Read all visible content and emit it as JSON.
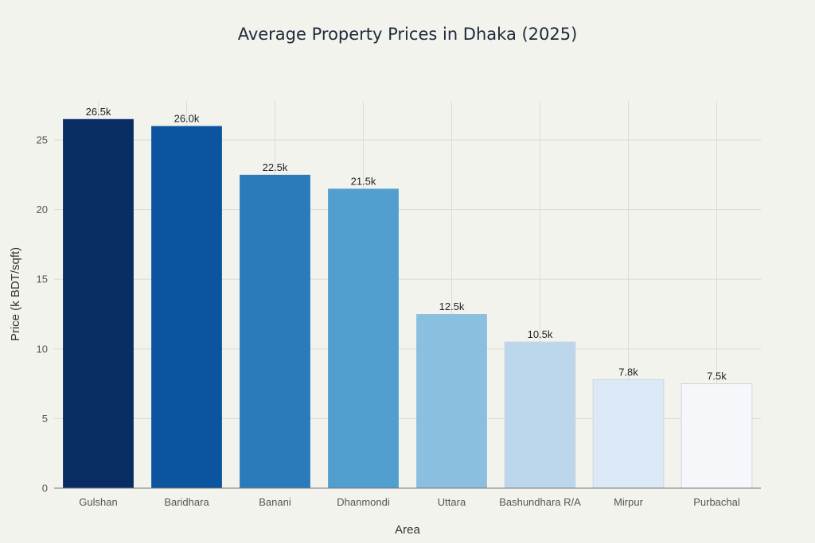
{
  "chart_data": {
    "type": "bar",
    "title": "Average Property Prices in Dhaka (2025)",
    "xlabel": "Area",
    "ylabel": "Price (k BDT/sqft)",
    "categories": [
      "Gulshan",
      "Baridhara",
      "Banani",
      "Dhanmondi",
      "Uttara",
      "Bashundhara R/A",
      "Mirpur",
      "Purbachal"
    ],
    "values": [
      26.5,
      26.0,
      22.5,
      21.5,
      12.5,
      10.5,
      7.8,
      7.5
    ],
    "data_labels": [
      "26.5k",
      "26.0k",
      "22.5k",
      "21.5k",
      "12.5k",
      "10.5k",
      "7.8k",
      "7.5k"
    ],
    "colors": [
      "#082d63",
      "#0c559e",
      "#2b7bbb",
      "#529fcf",
      "#8bbfdf",
      "#bcd7ec",
      "#dbe8f5",
      "#f6f7fb"
    ],
    "yticks": [
      0,
      5,
      10,
      15,
      20,
      25
    ],
    "ylim": [
      0,
      27.8
    ],
    "grid": true,
    "legend": "none"
  }
}
